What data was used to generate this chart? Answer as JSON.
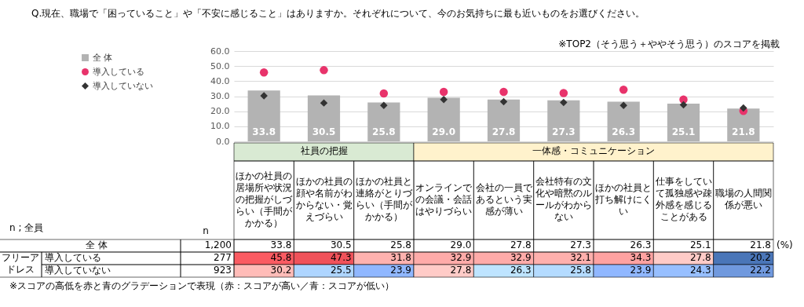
{
  "chart_data": {
    "type": "bar",
    "title": "Q.現在、職場で「困っていること」や「不安に感じること」はありますか。それぞれについて、今のお気持ちに最も近いものをお選びください。",
    "categories": [
      "ほかの社員の居場所や状況の把握がしづらい（手間がかかる）",
      "ほかの社員の顔や名前がわからない・覚えづらい",
      "ほかの社員と連絡がとりづらい（手間がかかる）",
      "オンラインでの会議・会話はやりづらい",
      "会社の一員であるという実感が薄い",
      "会社特有の文化や暗黙のルールがわからない",
      "ほかの社員と打ち解けにくい",
      "仕事をしていて孤独感や疎外感を感じることがある",
      "職場の人間関係が悪い"
    ],
    "series": [
      {
        "name": "全 体",
        "color": "#b3b3b3",
        "values": [
          33.8,
          30.5,
          25.8,
          29.0,
          27.8,
          27.3,
          26.3,
          25.1,
          21.8
        ],
        "value_labels": [
          "33.8",
          "30.5",
          "25.8",
          "29.0",
          "27.8",
          "27.3",
          "26.3",
          "25.1",
          "21.8"
        ]
      },
      {
        "name": "導入している",
        "type": "scatter",
        "marker": "circle",
        "color": "#e8336b",
        "values": [
          45.8,
          47.3,
          31.8,
          32.9,
          32.9,
          32.1,
          34.3,
          27.8,
          20.2
        ],
        "value_labels": [
          "45.8",
          "47.3",
          "31.8",
          "32.9",
          "32.9",
          "32.1",
          "34.3",
          "27.8",
          "20.2"
        ]
      },
      {
        "name": "導入していない",
        "type": "scatter",
        "marker": "diamond",
        "color": "#333333",
        "values": [
          30.2,
          25.5,
          23.9,
          27.8,
          26.3,
          25.8,
          23.9,
          24.3,
          22.2
        ],
        "value_labels": [
          "30.2",
          "25.5",
          "23.9",
          "27.8",
          "26.3",
          "25.8",
          "23.9",
          "24.3",
          "22.2"
        ]
      }
    ],
    "ylim": [
      0,
      60
    ],
    "yticks": [
      {
        "value": 0,
        "label": "0.0"
      },
      {
        "value": 10,
        "label": "10.0"
      },
      {
        "value": 20,
        "label": "20.0"
      },
      {
        "value": 30,
        "label": "30.0"
      },
      {
        "value": 40,
        "label": "40.0"
      },
      {
        "value": 50,
        "label": "50.0"
      },
      {
        "value": 60,
        "label": "60.0"
      }
    ],
    "grid": "y",
    "legend": "left",
    "annotations": [
      "※TOP2（そう思う＋ややそう思う）のスコアを掲載",
      "n ; 全員",
      "n",
      "1,200",
      "277",
      "923",
      "フリーアドレス",
      "(%)",
      "※スコアの高低を赤と青のグラデーションで表現（赤：スコアが高い／青：スコアが低い）",
      "社員の把握",
      "一体感・コミュニケーション"
    ]
  }
}
